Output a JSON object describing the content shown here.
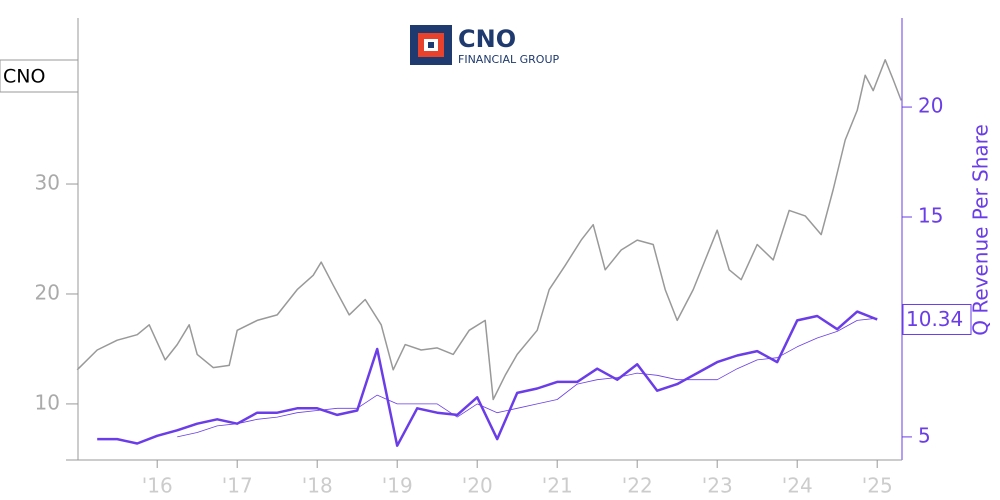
{
  "chart_data": {
    "type": "line",
    "ticker": "CNO",
    "logo": {
      "name": "CNO",
      "subtitle": "FINANCIAL GROUP"
    },
    "y2_label": "Q Revenue Per Share",
    "xlim": [
      2015.01,
      2025.31
    ],
    "xticks": [
      {
        "value": 2016,
        "label": "'16"
      },
      {
        "value": 2017,
        "label": "'17"
      },
      {
        "value": 2018,
        "label": "'18"
      },
      {
        "value": 2019,
        "label": "'19"
      },
      {
        "value": 2020,
        "label": "'20"
      },
      {
        "value": 2021,
        "label": "'21"
      },
      {
        "value": 2022,
        "label": "'22"
      },
      {
        "value": 2023,
        "label": "'23"
      },
      {
        "value": 2024,
        "label": "'24"
      },
      {
        "value": 2025,
        "label": "'25"
      }
    ],
    "ylim": [
      4.9,
      45.1
    ],
    "yticks": [
      10,
      20,
      30
    ],
    "y2lim": [
      3.95,
      24.05
    ],
    "y2ticks": [
      5,
      10,
      15,
      20
    ],
    "series": [
      {
        "color": "#999999",
        "axis": "y",
        "x": [
          2015.0,
          2015.25,
          2015.5,
          2015.75,
          2015.9,
          2016.1,
          2016.25,
          2016.4,
          2016.5,
          2016.7,
          2016.9,
          2017.0,
          2017.25,
          2017.5,
          2017.75,
          2017.95,
          2018.05,
          2018.2,
          2018.4,
          2018.6,
          2018.8,
          2018.95,
          2019.1,
          2019.3,
          2019.5,
          2019.7,
          2019.9,
          2020.1,
          2020.2,
          2020.35,
          2020.5,
          2020.75,
          2020.9,
          2021.1,
          2021.3,
          2021.45,
          2021.6,
          2021.8,
          2022.0,
          2022.2,
          2022.35,
          2022.5,
          2022.7,
          2022.85,
          2023.0,
          2023.15,
          2023.3,
          2023.5,
          2023.7,
          2023.9,
          2024.1,
          2024.3,
          2024.45,
          2024.6,
          2024.75,
          2024.85,
          2024.95,
          2025.1,
          2025.2,
          2025.3
        ],
        "values": [
          13.1,
          14.9,
          15.8,
          16.3,
          17.2,
          14,
          15.4,
          17.2,
          14.5,
          13.3,
          13.5,
          16.7,
          17.6,
          18.1,
          20.4,
          21.7,
          22.9,
          20.8,
          18.1,
          19.5,
          17.2,
          13.1,
          15.4,
          14.9,
          15.1,
          14.5,
          16.7,
          17.6,
          10.4,
          12.6,
          14.5,
          16.7,
          20.4,
          22.6,
          24.9,
          26.3,
          22.2,
          24,
          24.9,
          24.5,
          20.4,
          17.6,
          20.4,
          23.1,
          25.8,
          22.2,
          21.3,
          24.5,
          23.1,
          27.6,
          27.1,
          25.4,
          29.5,
          34,
          36.7,
          39.9,
          38.5,
          41.3,
          39.5,
          37.6
        ]
      },
      {
        "color": "#6a3de8",
        "axis": "y2",
        "width": 2.5,
        "x": [
          2015.25,
          2015.5,
          2015.75,
          2016.0,
          2016.25,
          2016.5,
          2016.75,
          2017.0,
          2017.25,
          2017.5,
          2017.75,
          2018.0,
          2018.25,
          2018.5,
          2018.75,
          2019.0,
          2019.25,
          2019.5,
          2019.75,
          2020.0,
          2020.25,
          2020.5,
          2020.75,
          2021.0,
          2021.25,
          2021.5,
          2021.75,
          2022.0,
          2022.25,
          2022.5,
          2022.75,
          2023.0,
          2023.25,
          2023.5,
          2023.75,
          2024.0,
          2024.25,
          2024.5,
          2024.75,
          2025.0
        ],
        "values": [
          4.9,
          4.9,
          4.7,
          5.05,
          5.3,
          5.6,
          5.8,
          5.6,
          6.1,
          6.1,
          6.3,
          6.3,
          6.0,
          6.2,
          9.0,
          4.6,
          6.3,
          6.1,
          6.0,
          6.8,
          4.9,
          7.0,
          7.2,
          7.5,
          7.5,
          8.1,
          7.6,
          8.3,
          7.1,
          7.4,
          7.9,
          8.4,
          8.7,
          8.9,
          8.4,
          10.3,
          10.5,
          9.9,
          10.7,
          10.34
        ]
      },
      {
        "color": "#6a3de8",
        "axis": "y2",
        "width": 0.8,
        "x": [
          2015.25,
          2015.5,
          2015.75,
          2016.0,
          2016.25,
          2016.5,
          2016.75,
          2017.0,
          2017.25,
          2017.5,
          2017.75,
          2018.0,
          2018.25,
          2018.5,
          2018.75,
          2019.0,
          2019.25,
          2019.5,
          2019.75,
          2020.0,
          2020.25,
          2020.5,
          2020.75,
          2021.0,
          2021.25,
          2021.5,
          2021.75,
          2022.0,
          2022.25,
          2022.5,
          2022.75,
          2023.0,
          2023.25,
          2023.5,
          2023.75,
          2024.0,
          2024.25,
          2024.5,
          2024.75,
          2025.0
        ],
        "values": [
          null,
          null,
          null,
          null,
          5.0,
          5.2,
          5.5,
          5.6,
          5.8,
          5.9,
          6.1,
          6.2,
          6.3,
          6.3,
          6.9,
          6.5,
          6.5,
          6.5,
          5.9,
          6.5,
          6.1,
          6.3,
          6.5,
          6.7,
          7.4,
          7.6,
          7.7,
          7.9,
          7.8,
          7.6,
          7.6,
          7.6,
          8.1,
          8.5,
          8.6,
          9.1,
          9.5,
          9.8,
          10.3,
          10.4
        ]
      }
    ]
  }
}
